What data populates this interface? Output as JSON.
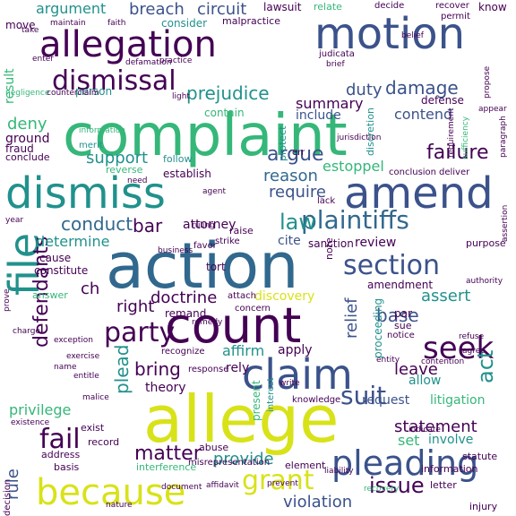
{
  "title": "",
  "palette": {
    "purple": "#440154",
    "indigo": "#3b528b",
    "blue": "#31688e",
    "teal": "#21918c",
    "green": "#35b779",
    "lime": "#90d743",
    "yellow": "#d8e219"
  },
  "words": [
    {
      "text": "complaint",
      "color": "#35b779"
    },
    {
      "text": "action",
      "color": "#31688e"
    },
    {
      "text": "allege",
      "color": "#d8e219"
    },
    {
      "text": "count",
      "color": "#440154"
    },
    {
      "text": "dismiss",
      "color": "#21918c"
    },
    {
      "text": "amend",
      "color": "#3b528b"
    },
    {
      "text": "motion",
      "color": "#3b528b"
    },
    {
      "text": "allegation",
      "color": "#440154"
    },
    {
      "text": "claim",
      "color": "#3b528b"
    },
    {
      "text": "file",
      "color": "#21918c"
    },
    {
      "text": "because",
      "color": "#d8e219"
    },
    {
      "text": "pleading",
      "color": "#3b528b"
    },
    {
      "text": "plaintiffs",
      "color": "#31688e"
    },
    {
      "text": "party",
      "color": "#440154"
    },
    {
      "text": "dismissal",
      "color": "#440154"
    },
    {
      "text": "section",
      "color": "#3b528b"
    },
    {
      "text": "suit",
      "color": "#3b528b"
    },
    {
      "text": "seek",
      "color": "#440154"
    },
    {
      "text": "fail",
      "color": "#440154"
    },
    {
      "text": "grant",
      "color": "#d8e219"
    },
    {
      "text": "issue",
      "color": "#440154"
    },
    {
      "text": "law",
      "color": "#21918c"
    },
    {
      "text": "defendants",
      "color": "#440154"
    },
    {
      "text": "matter",
      "color": "#440154"
    },
    {
      "text": "statement",
      "color": "#440154"
    },
    {
      "text": "conduct",
      "color": "#31688e"
    },
    {
      "text": "failure",
      "color": "#440154"
    },
    {
      "text": "argue",
      "color": "#3b528b"
    },
    {
      "text": "prejudice",
      "color": "#21918c"
    },
    {
      "text": "damage",
      "color": "#3b528b"
    },
    {
      "text": "duty",
      "color": "#3b528b"
    },
    {
      "text": "breach",
      "color": "#3b528b"
    },
    {
      "text": "circuit",
      "color": "#3b528b"
    },
    {
      "text": "argument",
      "color": "#21918c"
    },
    {
      "text": "support",
      "color": "#21918c"
    },
    {
      "text": "doctrine",
      "color": "#440154"
    },
    {
      "text": "determine",
      "color": "#21918c"
    },
    {
      "text": "assert",
      "color": "#21918c"
    },
    {
      "text": "base",
      "color": "#3b528b"
    },
    {
      "text": "plead",
      "color": "#21918c"
    },
    {
      "text": "bring",
      "color": "#440154"
    },
    {
      "text": "rule",
      "color": "#3b528b"
    },
    {
      "text": "relief",
      "color": "#3b528b"
    },
    {
      "text": "act",
      "color": "#21918c"
    },
    {
      "text": "estoppel",
      "color": "#35b779"
    },
    {
      "text": "reason",
      "color": "#31688e"
    },
    {
      "text": "require",
      "color": "#3b528b"
    },
    {
      "text": "deny",
      "color": "#35b779"
    },
    {
      "text": "summary",
      "color": "#440154"
    },
    {
      "text": "contend",
      "color": "#3b528b"
    },
    {
      "text": "include",
      "color": "#3b528b"
    },
    {
      "text": "provide",
      "color": "#21918c"
    },
    {
      "text": "violation",
      "color": "#3b528b"
    },
    {
      "text": "privilege",
      "color": "#35b779"
    },
    {
      "text": "set",
      "color": "#35b779"
    },
    {
      "text": "involve",
      "color": "#21918c"
    },
    {
      "text": "leave",
      "color": "#440154"
    },
    {
      "text": "request",
      "color": "#3b528b"
    },
    {
      "text": "allow",
      "color": "#21918c"
    },
    {
      "text": "litigation",
      "color": "#35b779"
    },
    {
      "text": "bar",
      "color": "#440154"
    },
    {
      "text": "right",
      "color": "#440154"
    },
    {
      "text": "affirm",
      "color": "#21918c"
    },
    {
      "text": "apply",
      "color": "#440154"
    },
    {
      "text": "rely",
      "color": "#440154"
    },
    {
      "text": "theory",
      "color": "#440154"
    },
    {
      "text": "discovery",
      "color": "#d8e219"
    },
    {
      "text": "review",
      "color": "#440154"
    },
    {
      "text": "cite",
      "color": "#3b528b"
    },
    {
      "text": "attorney",
      "color": "#440154"
    },
    {
      "text": "amendment",
      "color": "#440154"
    },
    {
      "text": "ch",
      "color": "#440154"
    },
    {
      "text": "ground",
      "color": "#440154"
    },
    {
      "text": "fraud",
      "color": "#440154"
    },
    {
      "text": "result",
      "color": "#35b779"
    },
    {
      "text": "move",
      "color": "#440154"
    },
    {
      "text": "consider",
      "color": "#21918c"
    },
    {
      "text": "lawsuit",
      "color": "#440154"
    },
    {
      "text": "relate",
      "color": "#35b779"
    },
    {
      "text": "know",
      "color": "#440154"
    },
    {
      "text": "person",
      "color": "#21918c"
    },
    {
      "text": "contain",
      "color": "#35b779"
    },
    {
      "text": "follow",
      "color": "#21918c"
    },
    {
      "text": "establish",
      "color": "#440154"
    },
    {
      "text": "conclude",
      "color": "#440154"
    },
    {
      "text": "merit",
      "color": "#21918c"
    },
    {
      "text": "cause",
      "color": "#440154"
    },
    {
      "text": "constitute",
      "color": "#440154"
    },
    {
      "text": "answer",
      "color": "#35b779"
    },
    {
      "text": "tort",
      "color": "#440154"
    },
    {
      "text": "remand",
      "color": "#440154"
    },
    {
      "text": "sanction",
      "color": "#440154"
    },
    {
      "text": "purpose",
      "color": "#440154"
    },
    {
      "text": "raise",
      "color": "#440154"
    },
    {
      "text": "strike",
      "color": "#440154"
    },
    {
      "text": "element",
      "color": "#440154"
    },
    {
      "text": "address",
      "color": "#440154"
    },
    {
      "text": "basis",
      "color": "#440154"
    },
    {
      "text": "record",
      "color": "#440154"
    },
    {
      "text": "exist",
      "color": "#440154"
    },
    {
      "text": "abuse",
      "color": "#440154"
    },
    {
      "text": "information",
      "color": "#440154"
    },
    {
      "text": "injury",
      "color": "#440154"
    },
    {
      "text": "letter",
      "color": "#440154"
    },
    {
      "text": "statute",
      "color": "#440154"
    },
    {
      "text": "knowledge",
      "color": "#440154"
    },
    {
      "text": "interference",
      "color": "#35b779"
    },
    {
      "text": "misrepresentation",
      "color": "#440154"
    },
    {
      "text": "decision",
      "color": "#440154"
    },
    {
      "text": "defense",
      "color": "#440154"
    },
    {
      "text": "malpractice",
      "color": "#440154"
    },
    {
      "text": "judicata",
      "color": "#440154"
    },
    {
      "text": "protect",
      "color": "#21918c"
    },
    {
      "text": "discretion",
      "color": "#21918c"
    },
    {
      "text": "note",
      "color": "#440154"
    },
    {
      "text": "present",
      "color": "#35b779"
    },
    {
      "text": "interest",
      "color": "#21918c"
    },
    {
      "text": "proceeding",
      "color": "#21918c"
    },
    {
      "text": "notice",
      "color": "#440154"
    },
    {
      "text": "sue",
      "color": "#440154"
    },
    {
      "text": "par",
      "color": "#440154"
    },
    {
      "text": "reverse",
      "color": "#35b779"
    },
    {
      "text": "favor",
      "color": "#440154"
    },
    {
      "text": "recognize",
      "color": "#440154"
    },
    {
      "text": "concern",
      "color": "#440154"
    },
    {
      "text": "attach",
      "color": "#440154"
    },
    {
      "text": "response",
      "color": "#440154"
    },
    {
      "text": "lack",
      "color": "#440154"
    },
    {
      "text": "permit",
      "color": "#440154"
    },
    {
      "text": "decide",
      "color": "#440154"
    },
    {
      "text": "recover",
      "color": "#440154"
    },
    {
      "text": "negligence",
      "color": "#35b779"
    },
    {
      "text": "counterclaim",
      "color": "#440154"
    },
    {
      "text": "conclusion",
      "color": "#440154"
    },
    {
      "text": "deliver",
      "color": "#440154"
    },
    {
      "text": "entity",
      "color": "#440154"
    },
    {
      "text": "remedy",
      "color": "#440154"
    },
    {
      "text": "ruling",
      "color": "#440154"
    },
    {
      "text": "business",
      "color": "#440154"
    },
    {
      "text": "agent",
      "color": "#440154"
    },
    {
      "text": "err",
      "color": "#440154"
    },
    {
      "text": "agree",
      "color": "#440154"
    },
    {
      "text": "refuse",
      "color": "#440154"
    },
    {
      "text": "write",
      "color": "#440154"
    },
    {
      "text": "exercise",
      "color": "#440154"
    },
    {
      "text": "contention",
      "color": "#440154"
    },
    {
      "text": "entitle",
      "color": "#440154"
    },
    {
      "text": "name",
      "color": "#440154"
    },
    {
      "text": "exception",
      "color": "#440154"
    },
    {
      "text": "existence",
      "color": "#440154"
    },
    {
      "text": "document",
      "color": "#440154"
    },
    {
      "text": "affidavit",
      "color": "#440154"
    },
    {
      "text": "nature",
      "color": "#440154"
    },
    {
      "text": "recovery",
      "color": "#35b779"
    },
    {
      "text": "liability",
      "color": "#440154"
    },
    {
      "text": "indicate",
      "color": "#440154"
    },
    {
      "text": "authority",
      "color": "#440154"
    },
    {
      "text": "appear",
      "color": "#440154"
    },
    {
      "text": "information",
      "color": "#440154"
    },
    {
      "text": "prevent",
      "color": "#35b779"
    },
    {
      "text": "enter",
      "color": "#440154"
    },
    {
      "text": "practice",
      "color": "#440154"
    },
    {
      "text": "propose",
      "color": "#440154"
    },
    {
      "text": "jurisdiction",
      "color": "#440154"
    },
    {
      "text": "requirement",
      "color": "#440154"
    },
    {
      "text": "sufficiency",
      "color": "#440154"
    },
    {
      "text": "paragraph",
      "color": "#35b779"
    },
    {
      "text": "faith",
      "color": "#440154"
    },
    {
      "text": "year",
      "color": "#440154"
    },
    {
      "text": "need",
      "color": "#440154"
    },
    {
      "text": "defamation",
      "color": "#440154"
    },
    {
      "text": "take",
      "color": "#440154"
    },
    {
      "text": "maintain",
      "color": "#440154"
    },
    {
      "text": "belief",
      "color": "#440154"
    },
    {
      "text": "brief",
      "color": "#440154"
    },
    {
      "text": "light",
      "color": "#440154"
    },
    {
      "text": "malice",
      "color": "#440154"
    },
    {
      "text": "charge",
      "color": "#440154"
    },
    {
      "text": "prove",
      "color": "#440154"
    },
    {
      "text": "assertion",
      "color": "#440154"
    },
    {
      "text": "representation",
      "color": "#440154"
    }
  ]
}
